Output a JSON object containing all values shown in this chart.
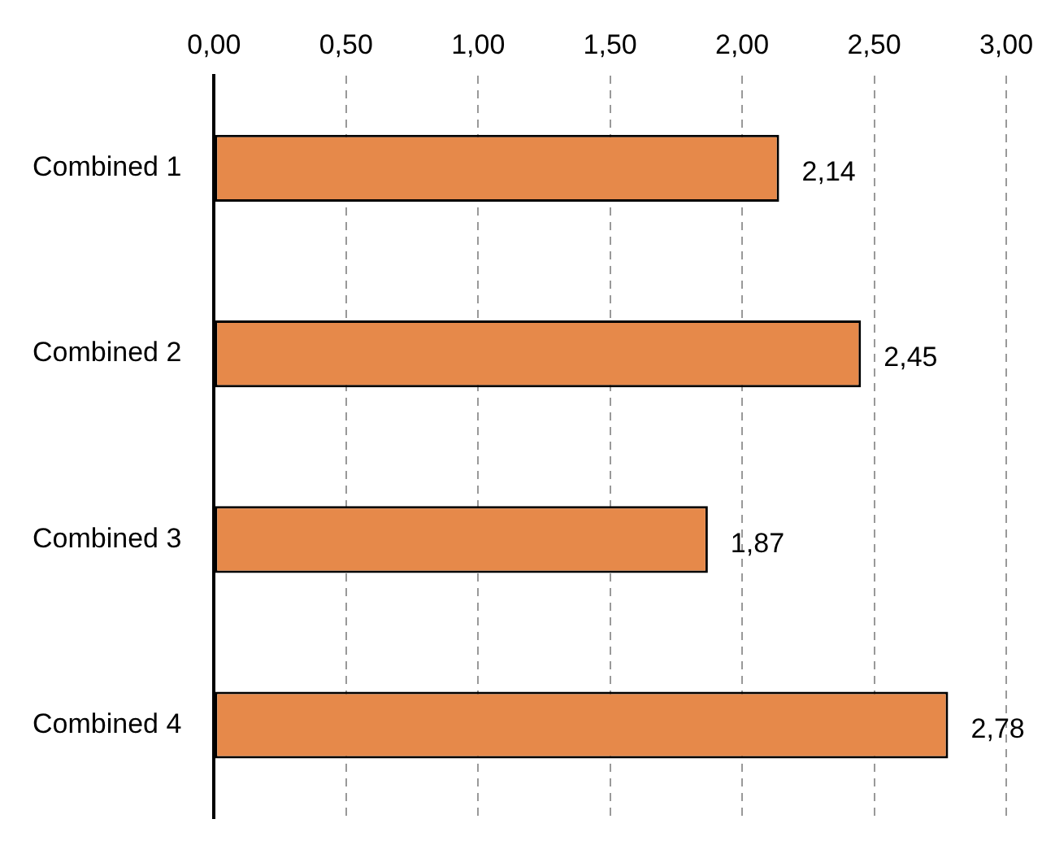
{
  "chart_data": {
    "type": "bar",
    "orientation": "horizontal",
    "categories": [
      "Combined 1",
      "Combined 2",
      "Combined 3",
      "Combined 4"
    ],
    "values": [
      2.14,
      2.45,
      1.87,
      2.78
    ],
    "value_labels": [
      "2,14",
      "2,45",
      "1,87",
      "2,78"
    ],
    "color": "#e6894a",
    "xlim": [
      0,
      3
    ],
    "xticks": [
      {
        "value": 0,
        "label": "0,00"
      },
      {
        "value": 0.5,
        "label": "0,50"
      },
      {
        "value": 1,
        "label": "1,00"
      },
      {
        "value": 1.5,
        "label": "1,50"
      },
      {
        "value": 2,
        "label": "2,00"
      },
      {
        "value": 2.5,
        "label": "2,50"
      },
      {
        "value": 3,
        "label": "3,00"
      }
    ],
    "grid": "x",
    "legend": false
  }
}
